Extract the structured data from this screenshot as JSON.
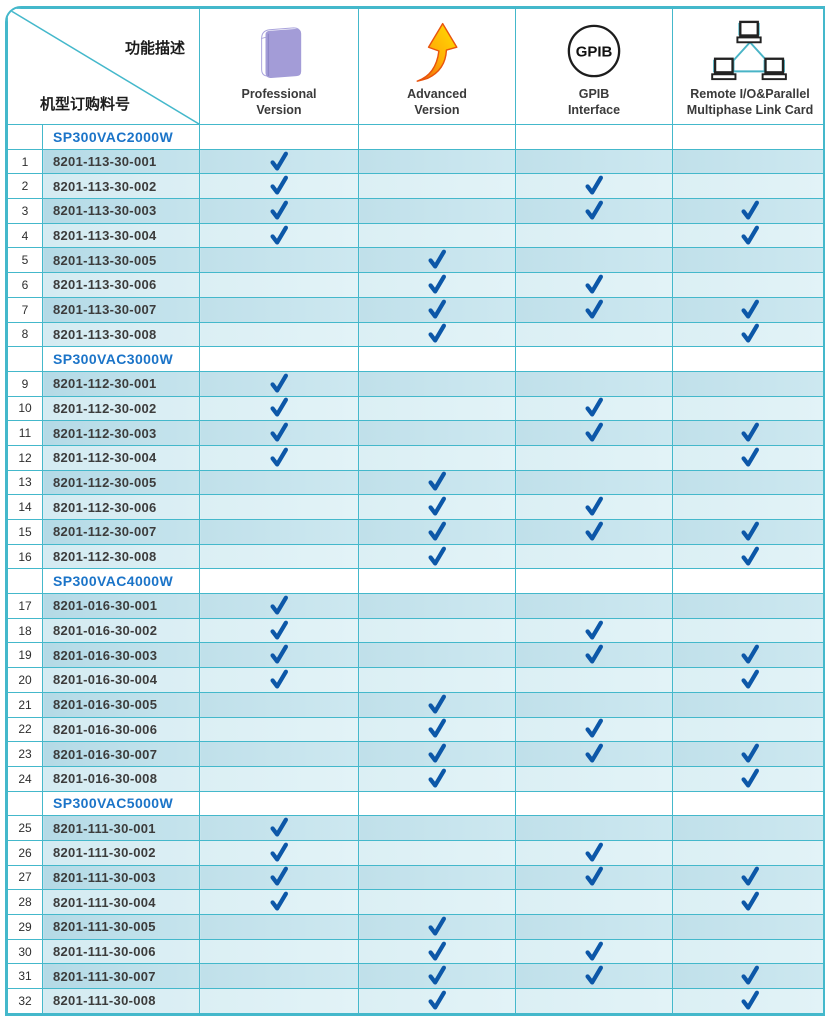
{
  "table": {
    "corner": {
      "top_label": "功能描述",
      "bottom_label": "机型订购料号"
    },
    "columns": [
      {
        "label": "Professional\nVersion",
        "icon": "book-icon"
      },
      {
        "label": "Advanced\nVersion",
        "icon": "growth-arrow-icon"
      },
      {
        "label": "GPIB\nInterface",
        "icon": "gpib-circle-icon",
        "icon_text": "GPIB"
      },
      {
        "label": "Remote I/O&Parallel\nMultiphase Link Card",
        "icon": "network-laptops-icon"
      }
    ],
    "check_symbol": "✓",
    "colors": {
      "border": "#44b8cb",
      "check": "#0c57a8",
      "model_text": "#1b74c8",
      "row_odd": "#c0e0ea",
      "row_even": "#dbeff4",
      "book": "#a39cd7",
      "arrow_orange": "#ee5a0a",
      "arrow_yellow": "#ffdf00"
    },
    "groups": [
      {
        "model": "SP300VAC2000W",
        "rows": [
          {
            "no": 1,
            "part": "8201-113-30-001",
            "checks": [
              1,
              0,
              0,
              0
            ]
          },
          {
            "no": 2,
            "part": "8201-113-30-002",
            "checks": [
              1,
              0,
              1,
              0
            ]
          },
          {
            "no": 3,
            "part": "8201-113-30-003",
            "checks": [
              1,
              0,
              1,
              1
            ]
          },
          {
            "no": 4,
            "part": "8201-113-30-004",
            "checks": [
              1,
              0,
              0,
              1
            ]
          },
          {
            "no": 5,
            "part": "8201-113-30-005",
            "checks": [
              0,
              1,
              0,
              0
            ]
          },
          {
            "no": 6,
            "part": "8201-113-30-006",
            "checks": [
              0,
              1,
              1,
              0
            ]
          },
          {
            "no": 7,
            "part": "8201-113-30-007",
            "checks": [
              0,
              1,
              1,
              1
            ]
          },
          {
            "no": 8,
            "part": "8201-113-30-008",
            "checks": [
              0,
              1,
              0,
              1
            ]
          }
        ]
      },
      {
        "model": "SP300VAC3000W",
        "rows": [
          {
            "no": 9,
            "part": "8201-112-30-001",
            "checks": [
              1,
              0,
              0,
              0
            ]
          },
          {
            "no": 10,
            "part": "8201-112-30-002",
            "checks": [
              1,
              0,
              1,
              0
            ]
          },
          {
            "no": 11,
            "part": "8201-112-30-003",
            "checks": [
              1,
              0,
              1,
              1
            ]
          },
          {
            "no": 12,
            "part": "8201-112-30-004",
            "checks": [
              1,
              0,
              0,
              1
            ]
          },
          {
            "no": 13,
            "part": "8201-112-30-005",
            "checks": [
              0,
              1,
              0,
              0
            ]
          },
          {
            "no": 14,
            "part": "8201-112-30-006",
            "checks": [
              0,
              1,
              1,
              0
            ]
          },
          {
            "no": 15,
            "part": "8201-112-30-007",
            "checks": [
              0,
              1,
              1,
              1
            ]
          },
          {
            "no": 16,
            "part": "8201-112-30-008",
            "checks": [
              0,
              1,
              0,
              1
            ]
          }
        ]
      },
      {
        "model": "SP300VAC4000W",
        "rows": [
          {
            "no": 17,
            "part": "8201-016-30-001",
            "checks": [
              1,
              0,
              0,
              0
            ]
          },
          {
            "no": 18,
            "part": "8201-016-30-002",
            "checks": [
              1,
              0,
              1,
              0
            ]
          },
          {
            "no": 19,
            "part": "8201-016-30-003",
            "checks": [
              1,
              0,
              1,
              1
            ]
          },
          {
            "no": 20,
            "part": "8201-016-30-004",
            "checks": [
              1,
              0,
              0,
              1
            ]
          },
          {
            "no": 21,
            "part": "8201-016-30-005",
            "checks": [
              0,
              1,
              0,
              0
            ]
          },
          {
            "no": 22,
            "part": "8201-016-30-006",
            "checks": [
              0,
              1,
              1,
              0
            ]
          },
          {
            "no": 23,
            "part": "8201-016-30-007",
            "checks": [
              0,
              1,
              1,
              1
            ]
          },
          {
            "no": 24,
            "part": "8201-016-30-008",
            "checks": [
              0,
              1,
              0,
              1
            ]
          }
        ]
      },
      {
        "model": "SP300VAC5000W",
        "rows": [
          {
            "no": 25,
            "part": "8201-111-30-001",
            "checks": [
              1,
              0,
              0,
              0
            ]
          },
          {
            "no": 26,
            "part": "8201-111-30-002",
            "checks": [
              1,
              0,
              1,
              0
            ]
          },
          {
            "no": 27,
            "part": "8201-111-30-003",
            "checks": [
              1,
              0,
              1,
              1
            ]
          },
          {
            "no": 28,
            "part": "8201-111-30-004",
            "checks": [
              1,
              0,
              0,
              1
            ]
          },
          {
            "no": 29,
            "part": "8201-111-30-005",
            "checks": [
              0,
              1,
              0,
              0
            ]
          },
          {
            "no": 30,
            "part": "8201-111-30-006",
            "checks": [
              0,
              1,
              1,
              0
            ]
          },
          {
            "no": 31,
            "part": "8201-111-30-007",
            "checks": [
              0,
              1,
              1,
              1
            ]
          },
          {
            "no": 32,
            "part": "8201-111-30-008",
            "checks": [
              0,
              1,
              0,
              1
            ]
          }
        ]
      }
    ]
  }
}
